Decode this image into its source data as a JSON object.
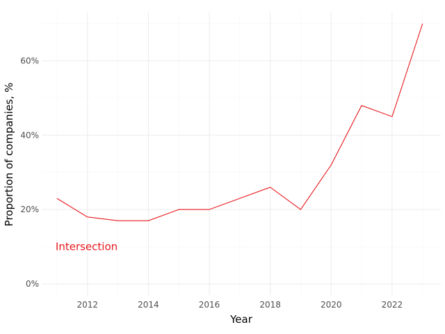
{
  "chart_data": {
    "type": "line",
    "title": "",
    "xlabel": "Year",
    "ylabel": "Proportion of companies, %",
    "xlim": [
      2010.5,
      2023.6
    ],
    "ylim": [
      -3,
      73
    ],
    "x_ticks": [
      2012,
      2014,
      2016,
      2018,
      2020,
      2022
    ],
    "x_tick_labels": [
      "2012",
      "2014",
      "2016",
      "2018",
      "2020",
      "2022"
    ],
    "y_ticks": [
      0,
      20,
      40,
      60
    ],
    "y_tick_labels": [
      "0%",
      "20%",
      "40%",
      "60%"
    ],
    "grid": true,
    "legend": "none",
    "series": [
      {
        "color": "#e8161b",
        "x": [
          2011,
          2012,
          2013,
          2014,
          2015,
          2016,
          2017,
          2018,
          2019,
          2020,
          2021,
          2022,
          2023
        ],
        "values": [
          23,
          18,
          17,
          17,
          20,
          20,
          23,
          26,
          20,
          32,
          48,
          45,
          70
        ]
      }
    ],
    "annotations": [
      {
        "text": "Intersection",
        "x": 2011,
        "y": 10,
        "color": "#e8161b"
      }
    ]
  }
}
